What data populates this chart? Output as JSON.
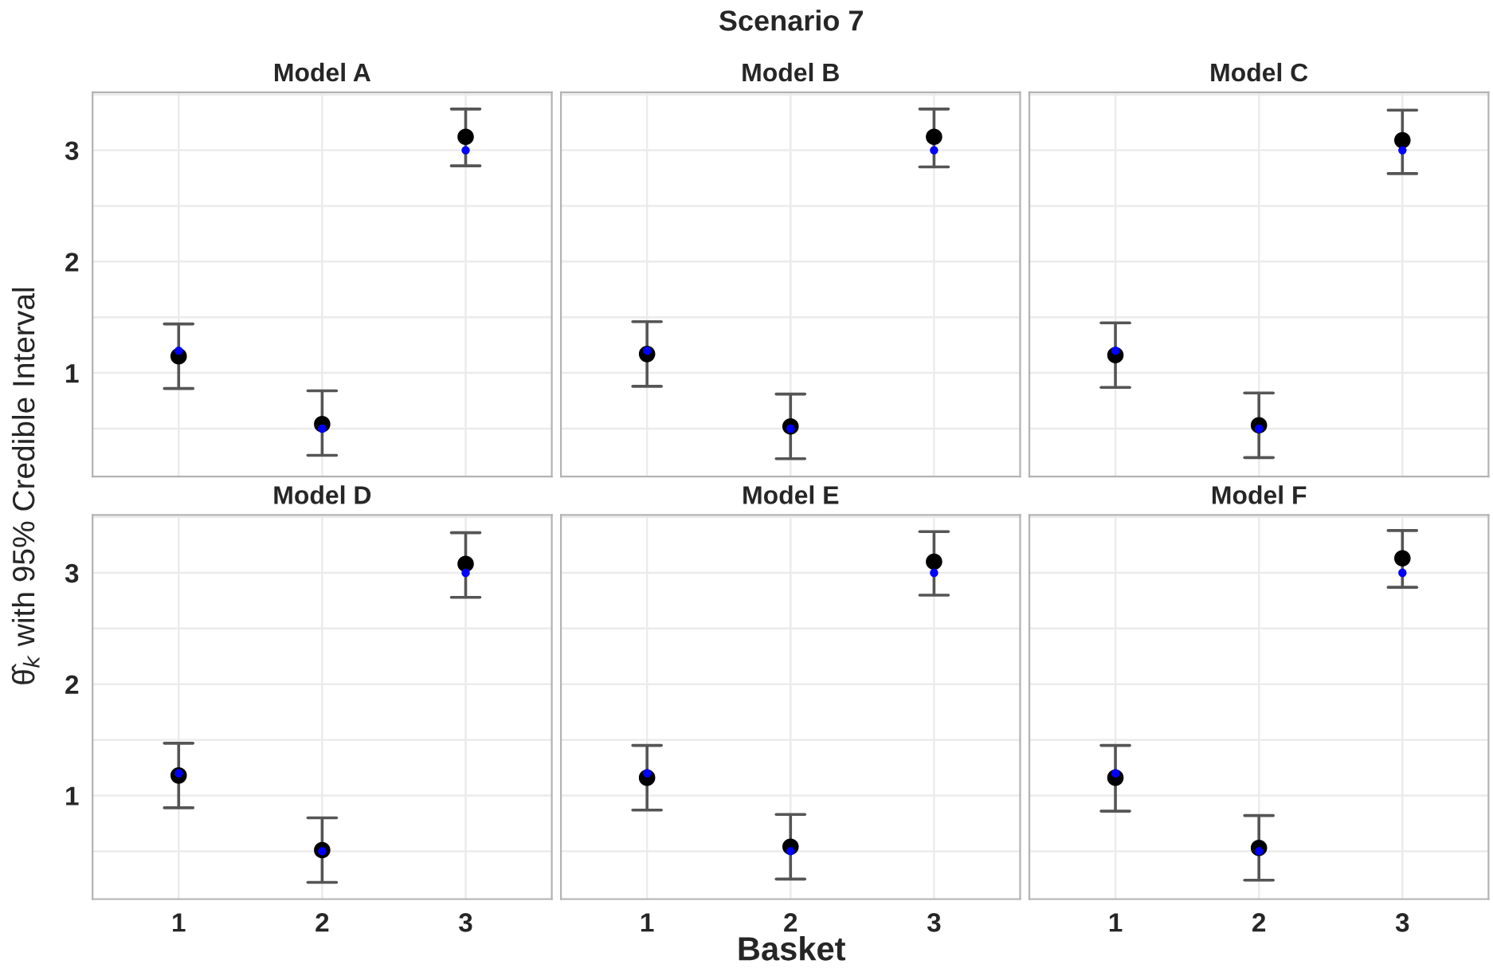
{
  "chart_data": [
    {
      "type": "scatter",
      "title": "Model A",
      "annotations": [
        "Scenario 7"
      ],
      "ylabel": "θ̂$_{k}$ with 95% Credible Interval",
      "categories": [
        "1",
        "2",
        "3"
      ],
      "ylim": [
        0.07,
        3.52
      ],
      "yticks": [
        {
          "value": 0.5,
          "label": null
        },
        1,
        {
          "value": 1.5,
          "label": null
        },
        2,
        {
          "value": 2.5,
          "label": null
        },
        3,
        {
          "value": 3.5,
          "label": null
        }
      ],
      "grid": true,
      "tick_labels": "y",
      "series": [
        {
          "color": "#000000",
          "values": [
            1.15,
            0.54,
            3.12
          ],
          "errors": [
            [
              0.86,
              1.44
            ],
            [
              0.26,
              0.84
            ],
            [
              2.86,
              3.37
            ]
          ]
        },
        {
          "color": "#0000ff",
          "values": [
            1.2,
            0.5,
            3.0
          ]
        }
      ]
    },
    {
      "type": "scatter",
      "title": "Model B",
      "categories": [
        "1",
        "2",
        "3"
      ],
      "ylim": [
        0.07,
        3.52
      ],
      "yticks": [
        {
          "value": 0.5,
          "label": null
        },
        1,
        {
          "value": 1.5,
          "label": null
        },
        2,
        {
          "value": 2.5,
          "label": null
        },
        3,
        {
          "value": 3.5,
          "label": null
        }
      ],
      "grid": true,
      "tick_labels": false,
      "series": [
        {
          "color": "#000000",
          "values": [
            1.17,
            0.52,
            3.12
          ],
          "errors": [
            [
              0.88,
              1.46
            ],
            [
              0.23,
              0.81
            ],
            [
              2.85,
              3.37
            ]
          ]
        },
        {
          "color": "#0000ff",
          "values": [
            1.2,
            0.5,
            3.0
          ]
        }
      ]
    },
    {
      "type": "scatter",
      "title": "Model C",
      "categories": [
        "1",
        "2",
        "3"
      ],
      "ylim": [
        0.07,
        3.52
      ],
      "yticks": [
        {
          "value": 0.5,
          "label": null
        },
        1,
        {
          "value": 1.5,
          "label": null
        },
        2,
        {
          "value": 2.5,
          "label": null
        },
        3,
        {
          "value": 3.5,
          "label": null
        }
      ],
      "grid": true,
      "tick_labels": false,
      "series": [
        {
          "color": "#000000",
          "values": [
            1.16,
            0.53,
            3.09
          ],
          "errors": [
            [
              0.87,
              1.45
            ],
            [
              0.24,
              0.82
            ],
            [
              2.79,
              3.36
            ]
          ]
        },
        {
          "color": "#0000ff",
          "values": [
            1.2,
            0.5,
            3.0
          ]
        }
      ]
    },
    {
      "type": "scatter",
      "title": "Model D",
      "categories": [
        "1",
        "2",
        "3"
      ],
      "ylim": [
        0.07,
        3.52
      ],
      "yticks": [
        {
          "value": 0.5,
          "label": null
        },
        1,
        {
          "value": 1.5,
          "label": null
        },
        2,
        {
          "value": 2.5,
          "label": null
        },
        3,
        {
          "value": 3.5,
          "label": null
        }
      ],
      "grid": true,
      "series": [
        {
          "color": "#000000",
          "values": [
            1.18,
            0.51,
            3.08
          ],
          "errors": [
            [
              0.89,
              1.47
            ],
            [
              0.22,
              0.8
            ],
            [
              2.78,
              3.36
            ]
          ]
        },
        {
          "color": "#0000ff",
          "values": [
            1.2,
            0.5,
            3.0
          ]
        }
      ]
    },
    {
      "type": "scatter",
      "title": "Model E",
      "xlabel": "Basket",
      "categories": [
        "1",
        "2",
        "3"
      ],
      "ylim": [
        0.07,
        3.52
      ],
      "yticks": [
        {
          "value": 0.5,
          "label": null
        },
        1,
        {
          "value": 1.5,
          "label": null
        },
        2,
        {
          "value": 2.5,
          "label": null
        },
        3,
        {
          "value": 3.5,
          "label": null
        }
      ],
      "grid": true,
      "tick_labels": "x",
      "series": [
        {
          "color": "#000000",
          "values": [
            1.16,
            0.54,
            3.1
          ],
          "errors": [
            [
              0.87,
              1.45
            ],
            [
              0.25,
              0.83
            ],
            [
              2.8,
              3.37
            ]
          ]
        },
        {
          "color": "#0000ff",
          "values": [
            1.2,
            0.5,
            3.0
          ]
        }
      ]
    },
    {
      "type": "scatter",
      "title": "Model F",
      "categories": [
        "1",
        "2",
        "3"
      ],
      "ylim": [
        0.07,
        3.52
      ],
      "yticks": [
        {
          "value": 0.5,
          "label": null
        },
        1,
        {
          "value": 1.5,
          "label": null
        },
        2,
        {
          "value": 2.5,
          "label": null
        },
        3,
        {
          "value": 3.5,
          "label": null
        }
      ],
      "grid": true,
      "tick_labels": "x",
      "series": [
        {
          "color": "#000000",
          "values": [
            1.16,
            0.53,
            3.13
          ],
          "errors": [
            [
              0.86,
              1.45
            ],
            [
              0.24,
              0.82
            ],
            [
              2.87,
              3.38
            ]
          ]
        },
        {
          "color": "#0000ff",
          "values": [
            1.2,
            0.5,
            3.0
          ]
        }
      ]
    }
  ]
}
